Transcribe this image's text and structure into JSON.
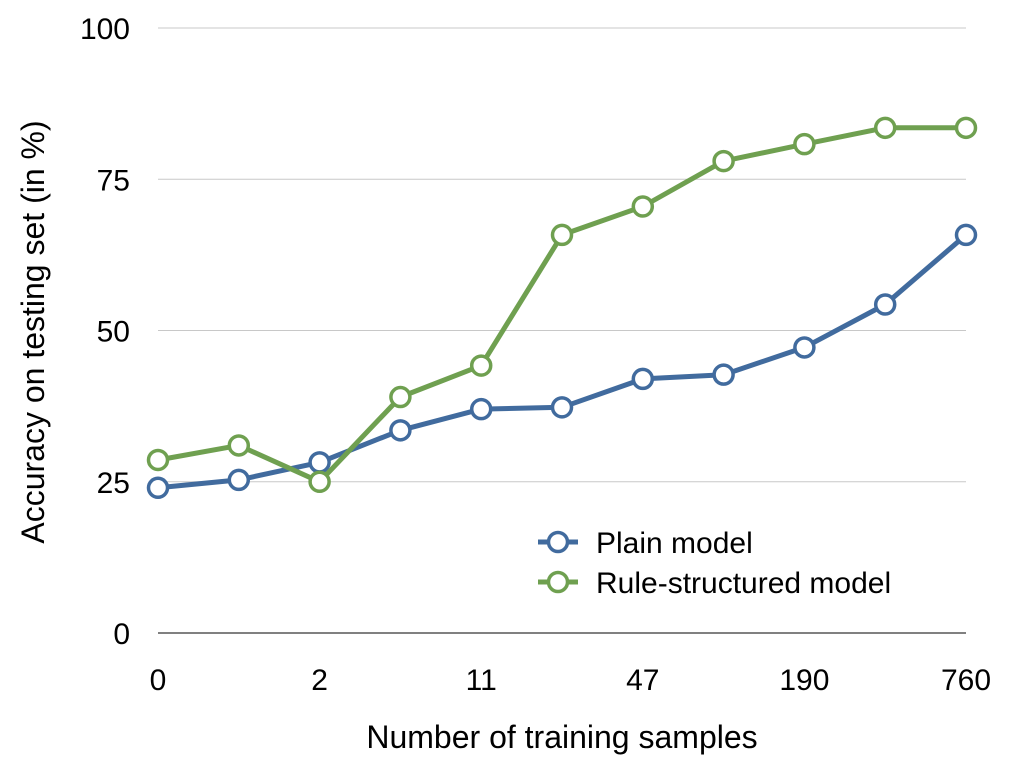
{
  "chart_data": {
    "type": "line",
    "xlabel": "Number of training samples",
    "ylabel": "Accuracy on testing set (in %)",
    "ylim": [
      0,
      100
    ],
    "yticks": [
      "0",
      "25",
      "50",
      "75",
      "100"
    ],
    "x_tick_labels": [
      "0",
      "2",
      "11",
      "47",
      "190",
      "760"
    ],
    "x_tick_positions": [
      0,
      2,
      4,
      6,
      8,
      10
    ],
    "grid": true,
    "legend_position": "bottom-right",
    "series": [
      {
        "name": "Plain model",
        "color": "#416b9e",
        "values": [
          24,
          25.3,
          28.2,
          33.5,
          37,
          37.3,
          42,
          42.7,
          47.2,
          54.3,
          65.8
        ]
      },
      {
        "name": "Rule-structured model",
        "color": "#6fa050",
        "values": [
          28.6,
          31,
          25,
          39,
          44.2,
          65.8,
          70.5,
          78,
          80.8,
          83.5,
          83.5
        ]
      }
    ]
  }
}
